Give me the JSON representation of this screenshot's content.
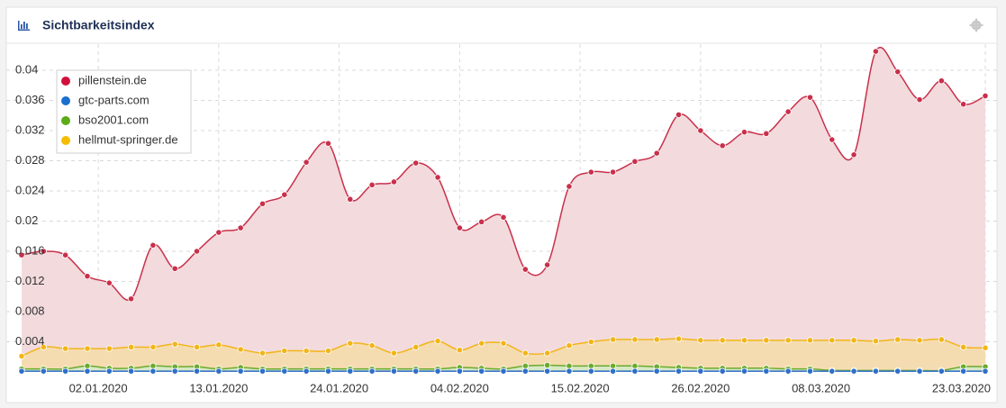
{
  "chart_data": {
    "type": "line-area",
    "title": "Sichtbarkeitsindex",
    "x": [
      "26.12.2019",
      "28.12.2019",
      "30.12.2019",
      "01.01.2020",
      "03.01.2020",
      "05.01.2020",
      "07.01.2020",
      "09.01.2020",
      "11.01.2020",
      "13.01.2020",
      "15.01.2020",
      "17.01.2020",
      "19.01.2020",
      "21.01.2020",
      "23.01.2020",
      "25.01.2020",
      "27.01.2020",
      "29.01.2020",
      "31.01.2020",
      "02.02.2020",
      "04.02.2020",
      "06.02.2020",
      "08.02.2020",
      "10.02.2020",
      "12.02.2020",
      "14.02.2020",
      "16.02.2020",
      "18.02.2020",
      "20.02.2020",
      "22.02.2020",
      "24.02.2020",
      "26.02.2020",
      "28.02.2020",
      "01.03.2020",
      "03.03.2020",
      "05.03.2020",
      "07.03.2020",
      "09.03.2020",
      "11.03.2020",
      "13.03.2020",
      "15.03.2020",
      "17.03.2020",
      "19.03.2020",
      "21.03.2020",
      "23.03.2020"
    ],
    "xticks": [
      "02.01.2020",
      "13.01.2020",
      "24.01.2020",
      "04.02.2020",
      "15.02.2020",
      "26.02.2020",
      "08.03.2020",
      "23.03.2020"
    ],
    "ylim": [
      0,
      0.0435
    ],
    "yticks": [
      0.004,
      0.008,
      0.012,
      0.016,
      0.02,
      0.024,
      0.028,
      0.032,
      0.036,
      0.04
    ],
    "grid": true,
    "legend": "top-left",
    "series": [
      {
        "name": "pillenstein.de",
        "color": "#c9304a",
        "legend_color": "#d0103a",
        "area_color": "#f2dadd",
        "values": [
          0.0155,
          0.016,
          0.0155,
          0.0127,
          0.0118,
          0.0097,
          0.0168,
          0.0137,
          0.016,
          0.0185,
          0.0191,
          0.0223,
          0.0235,
          0.0278,
          0.0303,
          0.0229,
          0.0248,
          0.0252,
          0.0277,
          0.0258,
          0.0191,
          0.0199,
          0.0205,
          0.0136,
          0.0142,
          0.0246,
          0.0265,
          0.0265,
          0.0279,
          0.029,
          0.0341,
          0.032,
          0.03,
          0.0318,
          0.0316,
          0.0345,
          0.0364,
          0.0308,
          0.0288,
          0.0425,
          0.0398,
          0.0361,
          0.0386,
          0.0355,
          0.0366
        ]
      },
      {
        "name": "gtc-parts.com",
        "color": "#2e6fc7",
        "legend_color": "#1a6fd1",
        "area_color": "#c9d9ee",
        "values": [
          0.0001,
          0.0001,
          0.0001,
          0.0001,
          0.0001,
          0.0001,
          0.0001,
          0.0001,
          0.0001,
          0.0001,
          0.0001,
          0.0001,
          0.0001,
          0.0001,
          0.0001,
          0.0001,
          0.0001,
          0.0001,
          0.0001,
          0.0001,
          0.0001,
          0.0001,
          0.0001,
          0.0001,
          0.0001,
          0.0001,
          0.0001,
          0.0001,
          0.0001,
          0.0001,
          0.0001,
          0.0001,
          0.0001,
          0.0001,
          0.0001,
          0.0001,
          0.0001,
          0.0001,
          0.0001,
          0.0001,
          0.0001,
          0.0001,
          0.0001,
          0.0001,
          0.0001
        ]
      },
      {
        "name": "bso2001.com",
        "color": "#6aab2e",
        "legend_color": "#5bab1a",
        "area_color": "#d6e8c4",
        "values": [
          0.0004,
          0.0004,
          0.0004,
          0.0008,
          0.0005,
          0.0005,
          0.0008,
          0.0007,
          0.0007,
          0.0004,
          0.0006,
          0.0004,
          0.0004,
          0.0004,
          0.0004,
          0.0004,
          0.0004,
          0.0004,
          0.0004,
          0.0004,
          0.0006,
          0.0005,
          0.0004,
          0.0008,
          0.0009,
          0.0008,
          0.0008,
          0.0008,
          0.0008,
          0.0007,
          0.0006,
          0.0005,
          0.0005,
          0.0005,
          0.0005,
          0.0004,
          0.0004,
          0.0002,
          0.0002,
          0.0002,
          0.0002,
          0.0002,
          0.0002,
          0.0007,
          0.0007
        ]
      },
      {
        "name": "hellmut-springer.de",
        "color": "#f2b51a",
        "legend_color": "#f5bd00",
        "area_color": "#f5dcb0",
        "values": [
          0.0021,
          0.0033,
          0.0031,
          0.0031,
          0.0031,
          0.0033,
          0.0033,
          0.0037,
          0.0033,
          0.0036,
          0.003,
          0.0025,
          0.0028,
          0.0028,
          0.0028,
          0.0038,
          0.0035,
          0.0025,
          0.0033,
          0.0041,
          0.0029,
          0.0038,
          0.0038,
          0.0025,
          0.0025,
          0.0035,
          0.004,
          0.0043,
          0.0043,
          0.0043,
          0.0044,
          0.0042,
          0.0042,
          0.0042,
          0.0042,
          0.0042,
          0.0042,
          0.0042,
          0.0042,
          0.0041,
          0.0043,
          0.0042,
          0.0043,
          0.0033,
          0.0032
        ]
      }
    ]
  }
}
